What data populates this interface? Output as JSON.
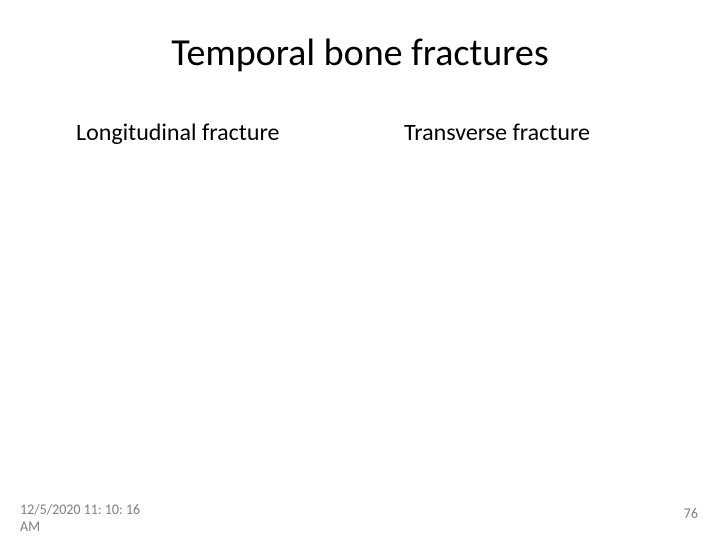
{
  "title": {
    "text": "Temporal bone fractures",
    "fontsize": 38,
    "color": "#000000"
  },
  "columns": {
    "left": {
      "heading": "Longitudinal fracture",
      "fontsize": 24,
      "color": "#000000"
    },
    "right": {
      "heading": "Transverse fracture",
      "fontsize": 24,
      "color": "#000000"
    }
  },
  "footer": {
    "timestamp_line1": "12/5/2020 11: 10: 16",
    "timestamp_line2": "AM",
    "page_number": "76",
    "fontsize": 14,
    "color": "#808080"
  },
  "background_color": "#ffffff"
}
